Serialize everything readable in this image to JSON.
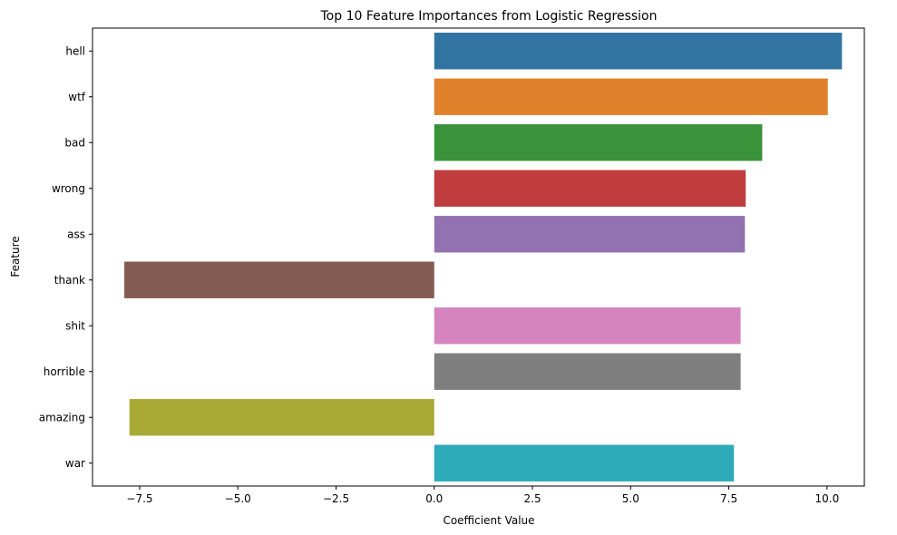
{
  "chart_data": {
    "type": "bar",
    "orientation": "horizontal",
    "title": "Top 10 Feature Importances from Logistic Regression",
    "xlabel": "Coefficient Value",
    "ylabel": "Feature",
    "categories": [
      "hell",
      "wtf",
      "bad",
      "wrong",
      "ass",
      "thank",
      "shit",
      "horrible",
      "amazing",
      "war"
    ],
    "values": [
      10.38,
      10.02,
      8.35,
      7.93,
      7.91,
      -7.89,
      7.8,
      7.8,
      -7.76,
      7.63
    ],
    "colors": [
      "#3274a1",
      "#e1812c",
      "#3a923a",
      "#c03d3e",
      "#9372b2",
      "#845b53",
      "#d684bd",
      "#7f7f7f",
      "#a9aa35",
      "#2eabb8"
    ],
    "xlim": [
      -8.7,
      10.95
    ],
    "xticks": [
      -7.5,
      -5.0,
      -2.5,
      0.0,
      2.5,
      5.0,
      7.5,
      10.0
    ],
    "xtick_labels": [
      "−7.5",
      "−5.0",
      "−2.5",
      "0.0",
      "2.5",
      "5.0",
      "7.5",
      "10.0"
    ],
    "grid": false,
    "legend": "none"
  }
}
